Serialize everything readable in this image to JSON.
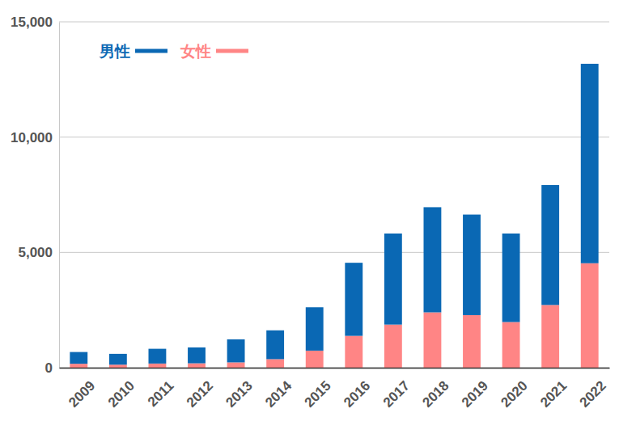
{
  "chart_data": {
    "type": "bar",
    "stacked": true,
    "grid": true,
    "legend": "upper left",
    "categories": [
      "2009",
      "2010",
      "2011",
      "2012",
      "2013",
      "2014",
      "2015",
      "2016",
      "2017",
      "2018",
      "2019",
      "2020",
      "2021",
      "2022"
    ],
    "series": [
      {
        "name": "男性",
        "color": "#0a68b4",
        "values": [
          510,
          470,
          640,
          690,
          1000,
          1250,
          1880,
          3170,
          3950,
          4560,
          4360,
          3840,
          5200,
          8650
        ]
      },
      {
        "name": "女性",
        "color": "#ff8585",
        "values": [
          170,
          130,
          180,
          190,
          230,
          370,
          740,
          1380,
          1870,
          2400,
          2280,
          1980,
          2720,
          4530
        ]
      }
    ],
    "ylim": [
      0,
      15000
    ],
    "yticks": [
      0,
      {
        "value": 5000,
        "label": "5,000"
      },
      {
        "value": 10000,
        "label": "10,000"
      },
      {
        "value": 15000,
        "label": "15,000"
      }
    ]
  }
}
